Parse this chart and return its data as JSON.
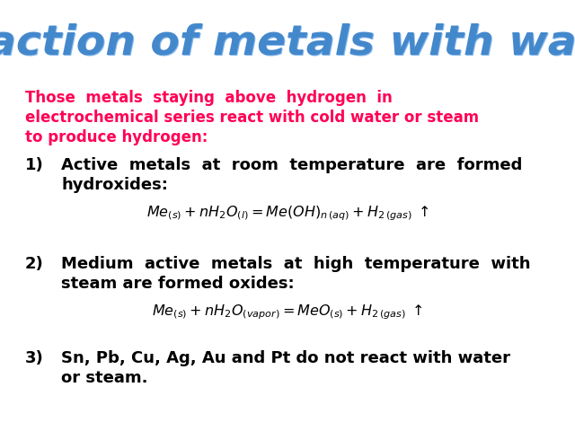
{
  "title": "Reaction of metals with water",
  "title_color": "#4488CC",
  "title_highlight": "#88BBEE",
  "bg_color": "#FFFFFF",
  "intro_color": "#FF0055",
  "text_color": "#000000",
  "formula_color": "#000000",
  "intro_lines": [
    "Those  metals  staying  above  hydrogen  in",
    "electrochemical series react with cold water or steam",
    "to produce hydrogen:"
  ],
  "item1_line1": "Active  metals  at  room  temperature  are  formed",
  "item1_line2": "hydroxides:",
  "formula1": "$\\mathit{Me}_{(s)} + nH_2O_{(l)} = \\mathit{Me}(OH)_{n\\,(aq)} + H_{2\\,(gas)}\\;\\uparrow$",
  "item2_line1": "Medium  active  metals  at  high  temperature  with",
  "item2_line2": "steam are formed oxides:",
  "formula2": "$\\mathit{Me}_{(s)} + nH_2O_{(vapor)} = \\mathit{Me}O_{(s)} + H_{2\\,(gas)}\\;\\uparrow$",
  "item3_line1": "Sn, Pb, Cu, Ag, Au and Pt do not react with water",
  "item3_line2": "or steam."
}
